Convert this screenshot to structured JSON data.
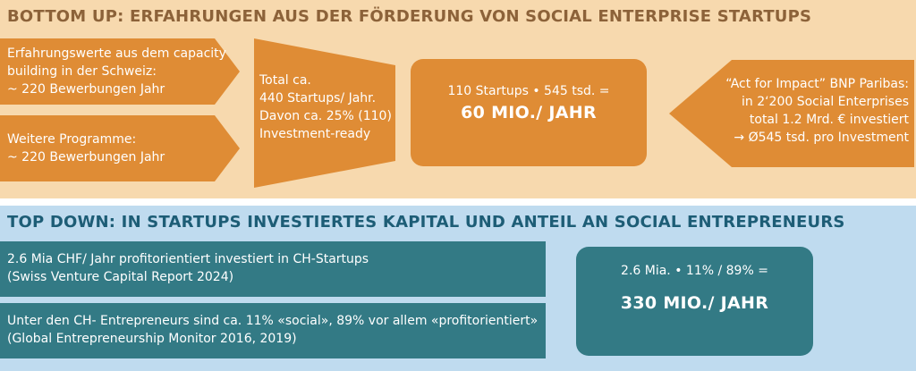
{
  "bottom_up": {
    "title": "BOTTOM UP: ERFAHRUNGEN AUS DER FÖRDERUNG VON SOCIAL ENTERPRISE STARTUPS",
    "arrow1": [
      "Erfahrungswerte aus dem capacity",
      "building in der Schweiz:",
      "~ 220 Bewerbungen Jahr"
    ],
    "arrow2": [
      "Weitere Programme:",
      " ~ 220 Bewerbungen Jahr"
    ],
    "funnel": [
      "Total ca.",
      " 440 Startups/ Jahr.",
      " Davon ca. 25% (110)",
      " Investment-ready"
    ],
    "result": {
      "formula": "110 Startups • 545 tsd. =",
      "value": "60 MIO./ JAHR"
    },
    "left_arrow": [
      "“Act for Impact” BNP Paribas:",
      "in 2‘200 Social Enterprises",
      "total 1.2 Mrd. € investiert",
      "→  Ø545 tsd. pro Investment"
    ]
  },
  "top_down": {
    "title": "TOP DOWN: IN STARTUPS INVESTIERTES KAPITAL UND ANTEIL AN SOCIAL ENTREPRENEURS",
    "bar1": [
      "2.6 Mia CHF/ Jahr profitorientiert investiert in CH-Startups",
      "(Swiss Venture Capital Report 2024)"
    ],
    "bar2": [
      "Unter den CH- Entrepreneurs sind ca. 11% «social», 89% vor allem «profitorientiert»",
      "(Global Entrepreneurship Monitor 2016, 2019)"
    ],
    "result": {
      "formula": "2.6 Mia. • 11% / 89% =",
      "value": "330 MIO./ JAHR"
    }
  },
  "colors": {
    "orange": "#df8c35",
    "teal": "#337a85",
    "peach_bg": "#f7d9ae",
    "blue_bg": "#bfdbef"
  }
}
